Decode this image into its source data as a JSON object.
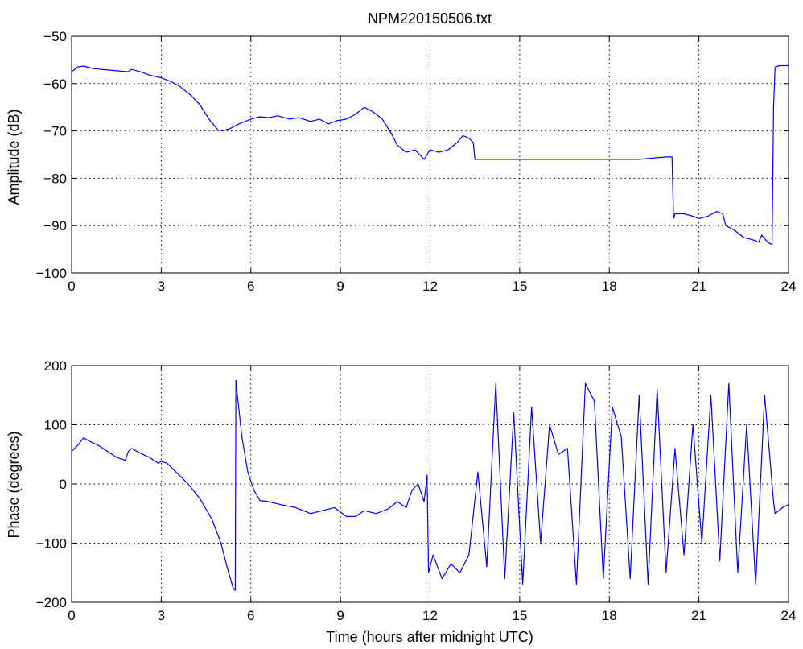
{
  "figure": {
    "title": "NPM220150506.txt"
  },
  "chart_data": [
    {
      "type": "line",
      "title": "NPM220150506.txt",
      "xlabel": "",
      "ylabel": "Amplitude (dB)",
      "xlim": [
        0,
        24
      ],
      "ylim": [
        -100,
        -50
      ],
      "xticks": [
        0,
        3,
        6,
        9,
        12,
        15,
        18,
        21,
        24
      ],
      "yticks": [
        -100,
        -90,
        -80,
        -70,
        -60,
        -50
      ],
      "grid": true,
      "line_color": "#0000ff",
      "series": [
        {
          "x": [
            0,
            0.2,
            0.4,
            0.7,
            1.0,
            1.5,
            1.9,
            2.0,
            2.3,
            2.6,
            3.0,
            3.3,
            3.6,
            4.0,
            4.3,
            4.6,
            4.9,
            5.05,
            5.3,
            5.6,
            6.0,
            6.3,
            6.6,
            6.9,
            7.3,
            7.6,
            8.0,
            8.3,
            8.6,
            8.9,
            9.2,
            9.5,
            9.8,
            10.1,
            10.4,
            10.7,
            10.9,
            11.2,
            11.5,
            11.8,
            12.0,
            12.3,
            12.6,
            12.9,
            13.1,
            13.3,
            13.45,
            13.5,
            14.0,
            15.0,
            16.0,
            17.0,
            18.0,
            19.0,
            19.9,
            20.1,
            20.15,
            20.2,
            20.5,
            20.8,
            21.0,
            21.3,
            21.6,
            21.8,
            21.9,
            22.2,
            22.5,
            22.8,
            23.0,
            23.1,
            23.3,
            23.45,
            23.5,
            23.55,
            23.7,
            24.0
          ],
          "values": [
            -57.5,
            -56.5,
            -56.3,
            -56.8,
            -57.0,
            -57.3,
            -57.5,
            -57.0,
            -57.5,
            -58.2,
            -58.8,
            -59.5,
            -60.5,
            -62.5,
            -64.5,
            -67.5,
            -69.8,
            -70.0,
            -69.5,
            -68.5,
            -67.5,
            -67.0,
            -67.2,
            -66.8,
            -67.5,
            -67.2,
            -68.0,
            -67.5,
            -68.5,
            -67.8,
            -67.5,
            -66.5,
            -65.0,
            -66.0,
            -67.5,
            -70.5,
            -73.0,
            -74.5,
            -74.0,
            -76.0,
            -74.0,
            -74.5,
            -74.0,
            -72.5,
            -71.0,
            -71.5,
            -72.5,
            -76.0,
            -76.0,
            -76.0,
            -76.0,
            -76.0,
            -76.0,
            -76.0,
            -75.5,
            -75.5,
            -88.5,
            -87.5,
            -87.5,
            -88.0,
            -88.5,
            -88.0,
            -87.0,
            -87.5,
            -90.0,
            -91.0,
            -92.5,
            -93.0,
            -93.5,
            -92.0,
            -93.5,
            -94.0,
            -65.0,
            -56.5,
            -56.2,
            -56.2
          ]
        }
      ]
    },
    {
      "type": "line",
      "title": "",
      "xlabel": "Time (hours after midnight UTC)",
      "ylabel": "Phase (degrees)",
      "xlim": [
        0,
        24
      ],
      "ylim": [
        -200,
        200
      ],
      "xticks": [
        0,
        3,
        6,
        9,
        12,
        15,
        18,
        21,
        24
      ],
      "yticks": [
        -200,
        -100,
        0,
        100,
        200
      ],
      "grid": true,
      "line_color": "#0000ff",
      "series": [
        {
          "x": [
            0,
            0.2,
            0.4,
            0.6,
            0.9,
            1.2,
            1.5,
            1.8,
            1.9,
            2.0,
            2.3,
            2.6,
            2.9,
            3.0,
            3.2,
            3.5,
            3.9,
            4.3,
            4.7,
            5.0,
            5.2,
            5.4,
            5.48,
            5.5,
            5.55,
            5.7,
            5.9,
            6.1,
            6.3,
            6.6,
            7.0,
            7.5,
            8.0,
            8.4,
            8.8,
            9.2,
            9.5,
            9.8,
            10.2,
            10.6,
            10.9,
            11.2,
            11.4,
            11.6,
            11.8,
            11.9,
            11.95,
            12.1,
            12.4,
            12.7,
            13.0,
            13.3,
            13.6,
            13.9,
            14.2,
            14.5,
            14.8,
            15.1,
            15.4,
            15.7,
            16.0,
            16.3,
            16.6,
            16.9,
            17.2,
            17.5,
            17.8,
            18.1,
            18.4,
            18.7,
            19.0,
            19.3,
            19.6,
            19.9,
            20.2,
            20.5,
            20.8,
            21.1,
            21.4,
            21.7,
            22.0,
            22.3,
            22.6,
            22.9,
            23.2,
            23.5,
            23.55,
            23.8,
            24.0
          ],
          "values": [
            55,
            65,
            78,
            72,
            65,
            55,
            45,
            40,
            55,
            60,
            52,
            45,
            35,
            38,
            35,
            20,
            0,
            -25,
            -60,
            -100,
            -140,
            -175,
            -180,
            175,
            150,
            80,
            20,
            -10,
            -28,
            -30,
            -35,
            -40,
            -50,
            -45,
            -40,
            -55,
            -55,
            -45,
            -50,
            -42,
            -30,
            -40,
            -10,
            0,
            -30,
            15,
            -150,
            -120,
            -160,
            -135,
            -150,
            -120,
            20,
            -140,
            170,
            -160,
            120,
            -170,
            130,
            -100,
            100,
            50,
            60,
            -170,
            170,
            140,
            -160,
            130,
            80,
            -160,
            150,
            -170,
            160,
            -150,
            60,
            -120,
            100,
            -100,
            150,
            -130,
            170,
            -150,
            100,
            -170,
            150,
            -30,
            -50,
            -40,
            -35
          ]
        }
      ]
    }
  ]
}
